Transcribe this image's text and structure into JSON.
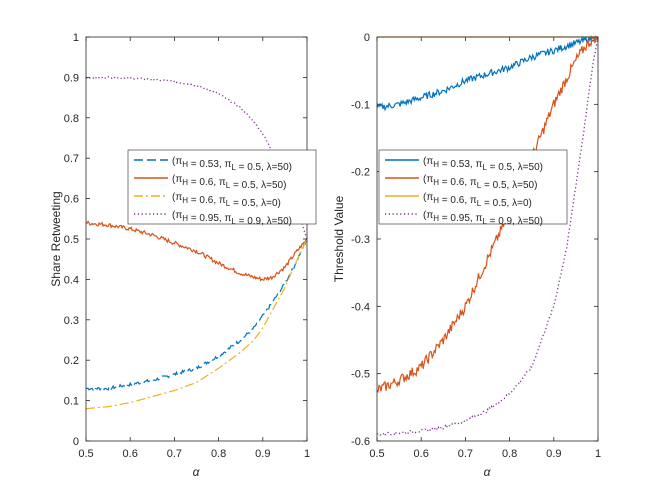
{
  "chart_data": [
    {
      "type": "line",
      "ylabel": "Share Retweeting",
      "xlabel": "α",
      "xlim": [
        0.5,
        1
      ],
      "ylim": [
        0,
        1
      ],
      "xticks": [
        "0.5",
        "0.6",
        "0.7",
        "0.8",
        "0.9",
        "1"
      ],
      "yticks": [
        "0",
        "0.1",
        "0.2",
        "0.3",
        "0.4",
        "0.5",
        "0.6",
        "0.7",
        "0.8",
        "0.9",
        "1"
      ],
      "legend": [
        "(π_H = 0.53, π_L = 0.5, λ=50)",
        "(π_H = 0.6, π_L = 0.5, λ=50)",
        "(π_H = 0.6, π_L = 0.5, λ=0)",
        "(π_H = 0.95, π_L = 0.9, λ=50)"
      ],
      "x": [
        0.5,
        0.55,
        0.6,
        0.65,
        0.7,
        0.75,
        0.8,
        0.85,
        0.88,
        0.9,
        0.92,
        0.95,
        0.97,
        1.0
      ],
      "series": [
        {
          "name": "(π_H = 0.53, π_L = 0.5, λ=50)",
          "color": "#0072BD",
          "dash": "dash",
          "noise": 0.004,
          "values": [
            0.13,
            0.13,
            0.14,
            0.15,
            0.165,
            0.18,
            0.21,
            0.25,
            0.28,
            0.31,
            0.34,
            0.39,
            0.43,
            0.5
          ]
        },
        {
          "name": "(π_H = 0.6, π_L = 0.5, λ=50)",
          "color": "#D95319",
          "dash": "solid",
          "noise": 0.005,
          "values": [
            0.54,
            0.535,
            0.525,
            0.51,
            0.49,
            0.47,
            0.44,
            0.415,
            0.405,
            0.4,
            0.405,
            0.43,
            0.46,
            0.5
          ]
        },
        {
          "name": "(π_H = 0.6, π_L = 0.5, λ=0)",
          "color": "#EDB120",
          "dash": "dashdot",
          "noise": 0,
          "values": [
            0.08,
            0.085,
            0.095,
            0.11,
            0.125,
            0.145,
            0.18,
            0.22,
            0.25,
            0.28,
            0.32,
            0.38,
            0.43,
            0.5
          ]
        },
        {
          "name": "(π_H = 0.95, π_L = 0.9, λ=50)",
          "color": "#7E2F8E",
          "dash": "dot",
          "noise": 0.002,
          "values": [
            0.9,
            0.9,
            0.898,
            0.895,
            0.89,
            0.88,
            0.86,
            0.825,
            0.79,
            0.76,
            0.72,
            0.66,
            0.6,
            0.5
          ]
        }
      ]
    },
    {
      "type": "line",
      "ylabel": "Threshold Value",
      "xlabel": "α",
      "xlim": [
        0.5,
        1
      ],
      "ylim": [
        -0.6,
        0
      ],
      "xticks": [
        "0.5",
        "0.6",
        "0.7",
        "0.8",
        "0.9",
        "1"
      ],
      "yticks": [
        "-0.6",
        "-0.5",
        "-0.4",
        "-0.3",
        "-0.2",
        "-0.1",
        "0"
      ],
      "legend": [
        "(π_H = 0.53, π_L = 0.5, λ=50)",
        "(π_H = 0.6, π_L = 0.5, λ=50)",
        "(π_H = 0.6, π_L = 0.5, λ=0)",
        "(π_H = 0.95, π_L = 0.9, λ=50)"
      ],
      "x": [
        0.5,
        0.55,
        0.6,
        0.65,
        0.7,
        0.75,
        0.8,
        0.85,
        0.9,
        0.93,
        0.95,
        0.97,
        0.98,
        0.99,
        1.0
      ],
      "series": [
        {
          "name": "(π_H = 0.53, π_L = 0.5, λ=50)",
          "color": "#0072BD",
          "dash": "solid",
          "noise": 0.005,
          "values": [
            -0.105,
            -0.1,
            -0.09,
            -0.08,
            -0.065,
            -0.055,
            -0.045,
            -0.03,
            -0.02,
            -0.013,
            -0.009,
            -0.005,
            -0.003,
            -0.001,
            0
          ]
        },
        {
          "name": "(π_H = 0.6, π_L = 0.5, λ=50)",
          "color": "#D95319",
          "dash": "solid",
          "noise": 0.008,
          "values": [
            -0.525,
            -0.51,
            -0.49,
            -0.45,
            -0.4,
            -0.33,
            -0.26,
            -0.18,
            -0.1,
            -0.06,
            -0.035,
            -0.015,
            -0.008,
            -0.002,
            0
          ]
        },
        {
          "name": "(π_H = 0.6, π_L = 0.5, λ=0)",
          "color": "#EDB120",
          "dash": "solid",
          "noise": 0,
          "values": [
            0,
            0,
            0,
            0,
            0,
            0,
            0,
            0,
            0,
            0,
            0,
            0,
            0,
            0,
            0
          ]
        },
        {
          "name": "(π_H = 0.95, π_L = 0.9, λ=50)",
          "color": "#7E2F8E",
          "dash": "dot",
          "noise": 0.002,
          "values": [
            -0.59,
            -0.588,
            -0.585,
            -0.58,
            -0.57,
            -0.555,
            -0.53,
            -0.49,
            -0.4,
            -0.31,
            -0.22,
            -0.13,
            -0.08,
            -0.035,
            0
          ]
        }
      ]
    }
  ]
}
